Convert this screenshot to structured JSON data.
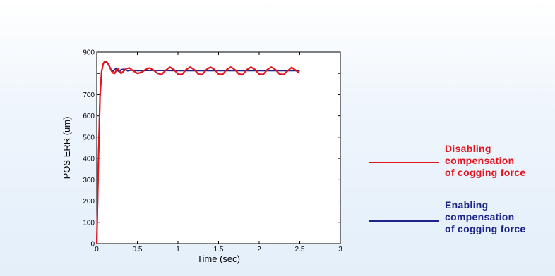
{
  "chart_data": {
    "type": "line",
    "xlabel": "Time (sec)",
    "ylabel": "POS ERR (um)",
    "xlim": [
      0,
      3
    ],
    "ylim": [
      0,
      900
    ],
    "xticks": [
      0,
      0.5,
      1,
      1.5,
      2,
      2.5,
      3
    ],
    "xtick_labels": [
      "0",
      "0.5",
      "1",
      "1.5",
      "2",
      "2.5",
      "3"
    ],
    "yticks": [
      0,
      100,
      200,
      300,
      400,
      500,
      600,
      700,
      900
    ],
    "ytick_labels": [
      "0",
      "100",
      "200",
      "300",
      "400",
      "500",
      "600",
      "700",
      "900"
    ],
    "grid": false,
    "legend_position": "right, outside plot",
    "series": [
      {
        "name": "Disabling compensation of cogging force",
        "color": "#e3141f",
        "x": [
          0,
          0.02,
          0.04,
          0.06,
          0.08,
          0.1,
          0.12,
          0.14,
          0.16,
          0.18,
          0.2,
          0.22,
          0.24,
          0.26,
          0.28,
          0.3,
          0.33,
          0.36,
          0.4,
          0.45,
          0.5,
          0.55,
          0.6,
          0.65,
          0.7,
          0.75,
          0.8,
          0.85,
          0.9,
          0.95,
          1.0,
          1.05,
          1.1,
          1.15,
          1.2,
          1.25,
          1.3,
          1.35,
          1.4,
          1.45,
          1.5,
          1.55,
          1.6,
          1.65,
          1.7,
          1.75,
          1.8,
          1.85,
          1.9,
          1.95,
          2.0,
          2.05,
          2.1,
          2.15,
          2.2,
          2.25,
          2.3,
          2.35,
          2.4,
          2.45,
          2.5
        ],
        "y": [
          0,
          380,
          690,
          810,
          845,
          858,
          855,
          845,
          830,
          812,
          802,
          800,
          815,
          822,
          810,
          800,
          810,
          822,
          826,
          812,
          800,
          805,
          818,
          826,
          815,
          800,
          795,
          815,
          830,
          818,
          797,
          795,
          818,
          830,
          818,
          797,
          795,
          818,
          830,
          818,
          797,
          795,
          818,
          830,
          818,
          797,
          795,
          818,
          830,
          818,
          797,
          795,
          818,
          830,
          818,
          797,
          795,
          812,
          828,
          815,
          800
        ]
      },
      {
        "name": "Enabling compensation of cogging force",
        "color": "#1c2488",
        "x": [
          0,
          0.02,
          0.04,
          0.06,
          0.08,
          0.1,
          0.12,
          0.14,
          0.16,
          0.18,
          0.2,
          0.22,
          0.24,
          0.26,
          0.28,
          0.3,
          0.34,
          0.38,
          0.42,
          0.5,
          0.7,
          1.0,
          1.5,
          2.0,
          2.5
        ],
        "y": [
          0,
          380,
          690,
          810,
          845,
          855,
          852,
          842,
          830,
          815,
          810,
          818,
          825,
          812,
          808,
          818,
          820,
          812,
          815,
          813,
          814,
          813,
          813,
          813,
          813
        ]
      }
    ]
  },
  "legend": [
    {
      "lines": [
        "Disabling",
        "compensation",
        "of cogging force"
      ],
      "color": "#e3141f"
    },
    {
      "lines": [
        "Enabling",
        "compensation",
        "of cogging force"
      ],
      "color": "#1c2488"
    }
  ]
}
